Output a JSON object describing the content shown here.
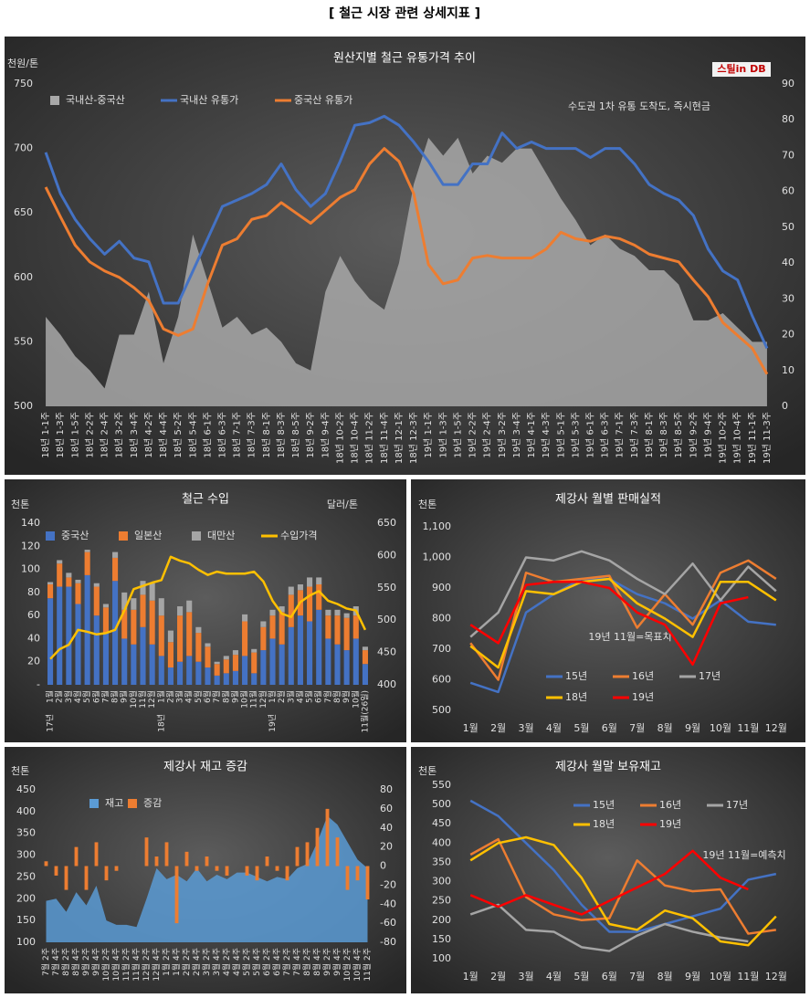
{
  "title": "[ 철근 시장 관련 상세지표 ]",
  "chart_data": [
    {
      "type": "combo",
      "title": "원산지별 철근 유통가격 추이",
      "y_label": "천원/톤",
      "annotation": "수도권 1차 유통 도착도, 즉시현금",
      "logo": "스틸in DB",
      "categories": [
        "18년 1-1주",
        "18년 1-3주",
        "18년 1-5주",
        "18년 2-2주",
        "18년 2-4주",
        "18년 3-2주",
        "18년 3-4주",
        "18년 4-2주",
        "18년 4-4주",
        "18년 5-2주",
        "18년 5-4주",
        "18년 6-1주",
        "18년 6-3주",
        "18년 7-1주",
        "18년 7-3주",
        "18년 8-1주",
        "18년 8-3주",
        "18년 8-5주",
        "18년 9-2주",
        "18년 9-4주",
        "18년 10-2주",
        "18년 10-4주",
        "18년 11-2주",
        "18년 11-4주",
        "18년 12-1주",
        "18년 12-3주",
        "19년 1-1주",
        "19년 1-3주",
        "19년 1-5주",
        "19년 2-2주",
        "19년 2-4주",
        "19년 3-2주",
        "19년 3-4주",
        "19년 4-1주",
        "19년 4-3주",
        "19년 5-1주",
        "19년 5-3주",
        "19년 6-1주",
        "19년 6-3주",
        "19년 7-1주",
        "19년 7-3주",
        "19년 8-1주",
        "19년 8-3주",
        "19년 8-5주",
        "19년 9-2주",
        "19년 9-4주",
        "19년 10-2주",
        "19년 10-4주",
        "19년 11-1주",
        "19년 11-3주"
      ],
      "series": [
        {
          "name": "국내산-중국산",
          "type": "area",
          "axis": "y2",
          "color": "#a8a8a8",
          "values": [
            25,
            20,
            14,
            10,
            5,
            20,
            20,
            32,
            12,
            25,
            48,
            35,
            22,
            25,
            20,
            22,
            18,
            12,
            10,
            32,
            42,
            35,
            30,
            27,
            40,
            62,
            75,
            70,
            75,
            65,
            70,
            68,
            72,
            72,
            65,
            58,
            52,
            45,
            48,
            44,
            42,
            38,
            38,
            34,
            24,
            24,
            26,
            22,
            18,
            18
          ]
        },
        {
          "name": "국내산 유통가",
          "type": "line",
          "color": "#4472c4",
          "values": [
            697,
            665,
            645,
            630,
            618,
            628,
            615,
            612,
            580,
            580,
            605,
            630,
            655,
            660,
            665,
            672,
            688,
            668,
            655,
            665,
            690,
            718,
            720,
            725,
            718,
            705,
            690,
            672,
            672,
            688,
            688,
            712,
            700,
            705,
            700,
            700,
            700,
            693,
            700,
            700,
            688,
            672,
            665,
            660,
            648,
            622,
            605,
            598,
            570,
            545
          ]
        },
        {
          "name": "중국산 유통가",
          "type": "line",
          "color": "#ed7d31",
          "values": [
            670,
            647,
            625,
            612,
            605,
            600,
            592,
            582,
            560,
            555,
            560,
            595,
            625,
            630,
            645,
            648,
            658,
            650,
            642,
            652,
            662,
            668,
            688,
            700,
            690,
            665,
            610,
            595,
            598,
            615,
            617,
            615,
            615,
            615,
            622,
            635,
            630,
            628,
            632,
            630,
            625,
            618,
            615,
            612,
            598,
            585,
            565,
            555,
            545,
            525
          ]
        }
      ],
      "ylim": [
        500,
        750
      ],
      "yticks": [
        500,
        550,
        600,
        650,
        700,
        750
      ],
      "y2lim": [
        0,
        90
      ],
      "y2ticks": [
        0,
        10,
        20,
        30,
        40,
        50,
        60,
        70,
        80,
        90
      ],
      "grid": false
    },
    {
      "type": "combo",
      "title": "철근 수입",
      "y_label": "천톤",
      "y2_label": "달러/톤",
      "stacked": true,
      "groups": [
        {
          "label": "17년",
          "categories": [
            "1월",
            "2월",
            "3월",
            "4월",
            "5월",
            "6월",
            "7월",
            "8월",
            "9월",
            "10월",
            "11월",
            "12월"
          ]
        },
        {
          "label": "18년",
          "categories": [
            "1월",
            "2월",
            "3월",
            "4월",
            "5월",
            "6월",
            "7월",
            "8월",
            "9월",
            "10월",
            "11월",
            "12월"
          ]
        },
        {
          "label": "19년",
          "categories": [
            "1월",
            "2월",
            "3월",
            "4월",
            "5월",
            "6월",
            "7월",
            "8월",
            "9월",
            "10월",
            "11월(26일)"
          ]
        }
      ],
      "series": [
        {
          "name": "중국산",
          "type": "bar",
          "color": "#4472c4",
          "values": [
            75,
            85,
            85,
            70,
            95,
            60,
            45,
            90,
            40,
            35,
            50,
            35,
            25,
            15,
            20,
            25,
            20,
            15,
            8,
            10,
            12,
            25,
            10,
            30,
            40,
            35,
            50,
            60,
            55,
            65,
            40,
            35,
            30,
            40,
            18
          ]
        },
        {
          "name": "일본산",
          "type": "bar",
          "color": "#ed7d31",
          "values": [
            12,
            20,
            8,
            18,
            20,
            25,
            22,
            20,
            25,
            30,
            28,
            38,
            35,
            22,
            40,
            38,
            25,
            18,
            10,
            12,
            14,
            30,
            18,
            20,
            20,
            28,
            28,
            22,
            30,
            22,
            20,
            25,
            28,
            20,
            12
          ]
        },
        {
          "name": "대만산",
          "type": "bar",
          "color": "#a5a5a5",
          "values": [
            2,
            3,
            4,
            3,
            2,
            3,
            3,
            5,
            15,
            10,
            12,
            15,
            15,
            10,
            8,
            10,
            5,
            3,
            2,
            3,
            4,
            6,
            3,
            5,
            5,
            5,
            7,
            5,
            8,
            6,
            5,
            5,
            4,
            8,
            3
          ]
        },
        {
          "name": "수입가격",
          "type": "line",
          "axis": "y2",
          "color": "#ffc000",
          "values": [
            440,
            455,
            462,
            485,
            482,
            478,
            480,
            485,
            515,
            548,
            553,
            558,
            562,
            598,
            592,
            588,
            578,
            570,
            575,
            572,
            572,
            572,
            575,
            560,
            530,
            510,
            505,
            528,
            538,
            545,
            530,
            525,
            518,
            515,
            485
          ]
        }
      ],
      "ylim": [
        0,
        140
      ],
      "yticks": [
        {
          "value": 0,
          "label": "-"
        },
        20,
        40,
        60,
        80,
        100,
        120,
        140
      ],
      "y2lim": [
        400,
        650
      ],
      "y2ticks": [
        400,
        450,
        500,
        550,
        600,
        650
      ],
      "grid": false
    },
    {
      "type": "line",
      "title": "제강사 월별 판매실적",
      "y_label": "천톤",
      "annotation": "19년 11월=목표치",
      "categories": [
        "1월",
        "2월",
        "3월",
        "4월",
        "5월",
        "6월",
        "7월",
        "8월",
        "9월",
        "10월",
        "11월",
        "12월"
      ],
      "series": [
        {
          "name": "15년",
          "type": "line",
          "color": "#4472c4",
          "values": [
            590,
            560,
            820,
            880,
            930,
            930,
            880,
            850,
            800,
            860,
            790,
            780
          ]
        },
        {
          "name": "16년",
          "type": "line",
          "color": "#ed7d31",
          "values": [
            720,
            600,
            950,
            920,
            930,
            940,
            770,
            880,
            780,
            950,
            990,
            930
          ]
        },
        {
          "name": "17년",
          "type": "line",
          "color": "#a5a5a5",
          "values": [
            740,
            820,
            1000,
            990,
            1020,
            990,
            930,
            880,
            980,
            860,
            970,
            890
          ]
        },
        {
          "name": "18년",
          "type": "line",
          "color": "#ffc000",
          "values": [
            710,
            640,
            890,
            880,
            920,
            930,
            850,
            800,
            740,
            920,
            920,
            860
          ]
        },
        {
          "name": "19년",
          "type": "line",
          "color": "#ff0000",
          "values": [
            780,
            720,
            910,
            920,
            920,
            900,
            820,
            780,
            650,
            850,
            870,
            null
          ]
        }
      ],
      "ylim": [
        500,
        1100
      ],
      "yticks": [
        500,
        600,
        700,
        800,
        900,
        {
          "value": 1000,
          "label": "1,000"
        },
        {
          "value": 1100,
          "label": "1,100"
        }
      ],
      "grid": false
    },
    {
      "type": "combo",
      "title": "제강사 재고 증감",
      "y_label": "천톤",
      "categories": [
        "7월 2주",
        "7월 4주",
        "8월 2주",
        "8월 4주",
        "9월 2주",
        "9월 4주",
        "10월 2주",
        "10월 4주",
        "11월 2주",
        "11월 4주",
        "12월 2주",
        "12월 4주",
        "1월 2주",
        "1월 4주",
        "2월 2주",
        "2월 4주",
        "3월 2주",
        "3월 4주",
        "4월 2주",
        "4월 4주",
        "5월 2주",
        "5월 4주",
        "6월 2주",
        "6월 4주",
        "7월 2주",
        "7월 4주",
        "8월 2주",
        "8월 4주",
        "9월 2주",
        "9월 4주",
        "10월 2주",
        "10월 4주",
        "11월 2주"
      ],
      "series": [
        {
          "name": "재고",
          "type": "area",
          "color": "#5b9bd5",
          "values": [
            195,
            200,
            170,
            215,
            185,
            230,
            150,
            140,
            140,
            135,
            200,
            270,
            245,
            255,
            240,
            270,
            240,
            255,
            245,
            260,
            260,
            250,
            240,
            250,
            245,
            270,
            280,
            330,
            390,
            370,
            330,
            290,
            270
          ]
        },
        {
          "name": "증감",
          "type": "bar",
          "axis": "y2",
          "color": "#ed7d31",
          "values": [
            5,
            -10,
            -25,
            20,
            -25,
            25,
            -15,
            -5,
            0,
            0,
            30,
            10,
            25,
            -60,
            15,
            -5,
            10,
            -5,
            -10,
            0,
            -10,
            -15,
            10,
            -5,
            -15,
            20,
            25,
            40,
            60,
            30,
            -25,
            -15,
            -35
          ]
        }
      ],
      "ylim": [
        100,
        450
      ],
      "yticks": [
        100,
        150,
        200,
        250,
        300,
        350,
        400,
        450
      ],
      "y2lim": [
        -80,
        80
      ],
      "y2ticks": [
        -80,
        -60,
        -40,
        -20,
        0,
        20,
        40,
        60,
        80
      ],
      "grid": false
    },
    {
      "type": "line",
      "title": "제강사 월말 보유재고",
      "y_label": "천톤",
      "annotation": "19년 11월=예측치",
      "categories": [
        "1월",
        "2월",
        "3월",
        "4월",
        "5월",
        "6월",
        "7월",
        "8월",
        "9월",
        "10월",
        "11월",
        "12월"
      ],
      "series": [
        {
          "name": "15년",
          "type": "line",
          "color": "#4472c4",
          "values": [
            510,
            470,
            400,
            330,
            240,
            170,
            170,
            190,
            210,
            230,
            305,
            320
          ]
        },
        {
          "name": "16년",
          "type": "line",
          "color": "#ed7d31",
          "values": [
            370,
            410,
            260,
            215,
            200,
            205,
            355,
            290,
            275,
            280,
            165,
            175
          ]
        },
        {
          "name": "17년",
          "type": "line",
          "color": "#a5a5a5",
          "values": [
            215,
            240,
            175,
            170,
            130,
            120,
            160,
            190,
            170,
            155,
            145,
            null
          ]
        },
        {
          "name": "18년",
          "type": "line",
          "color": "#ffc000",
          "values": [
            355,
            400,
            415,
            395,
            310,
            190,
            175,
            225,
            205,
            145,
            135,
            210
          ]
        },
        {
          "name": "19년",
          "type": "line",
          "color": "#ff0000",
          "values": [
            265,
            235,
            265,
            240,
            215,
            250,
            285,
            320,
            380,
            310,
            280,
            null
          ]
        }
      ],
      "ylim": [
        100,
        550
      ],
      "yticks": [
        100,
        150,
        200,
        250,
        300,
        350,
        400,
        450,
        500,
        550
      ],
      "grid": false
    }
  ]
}
